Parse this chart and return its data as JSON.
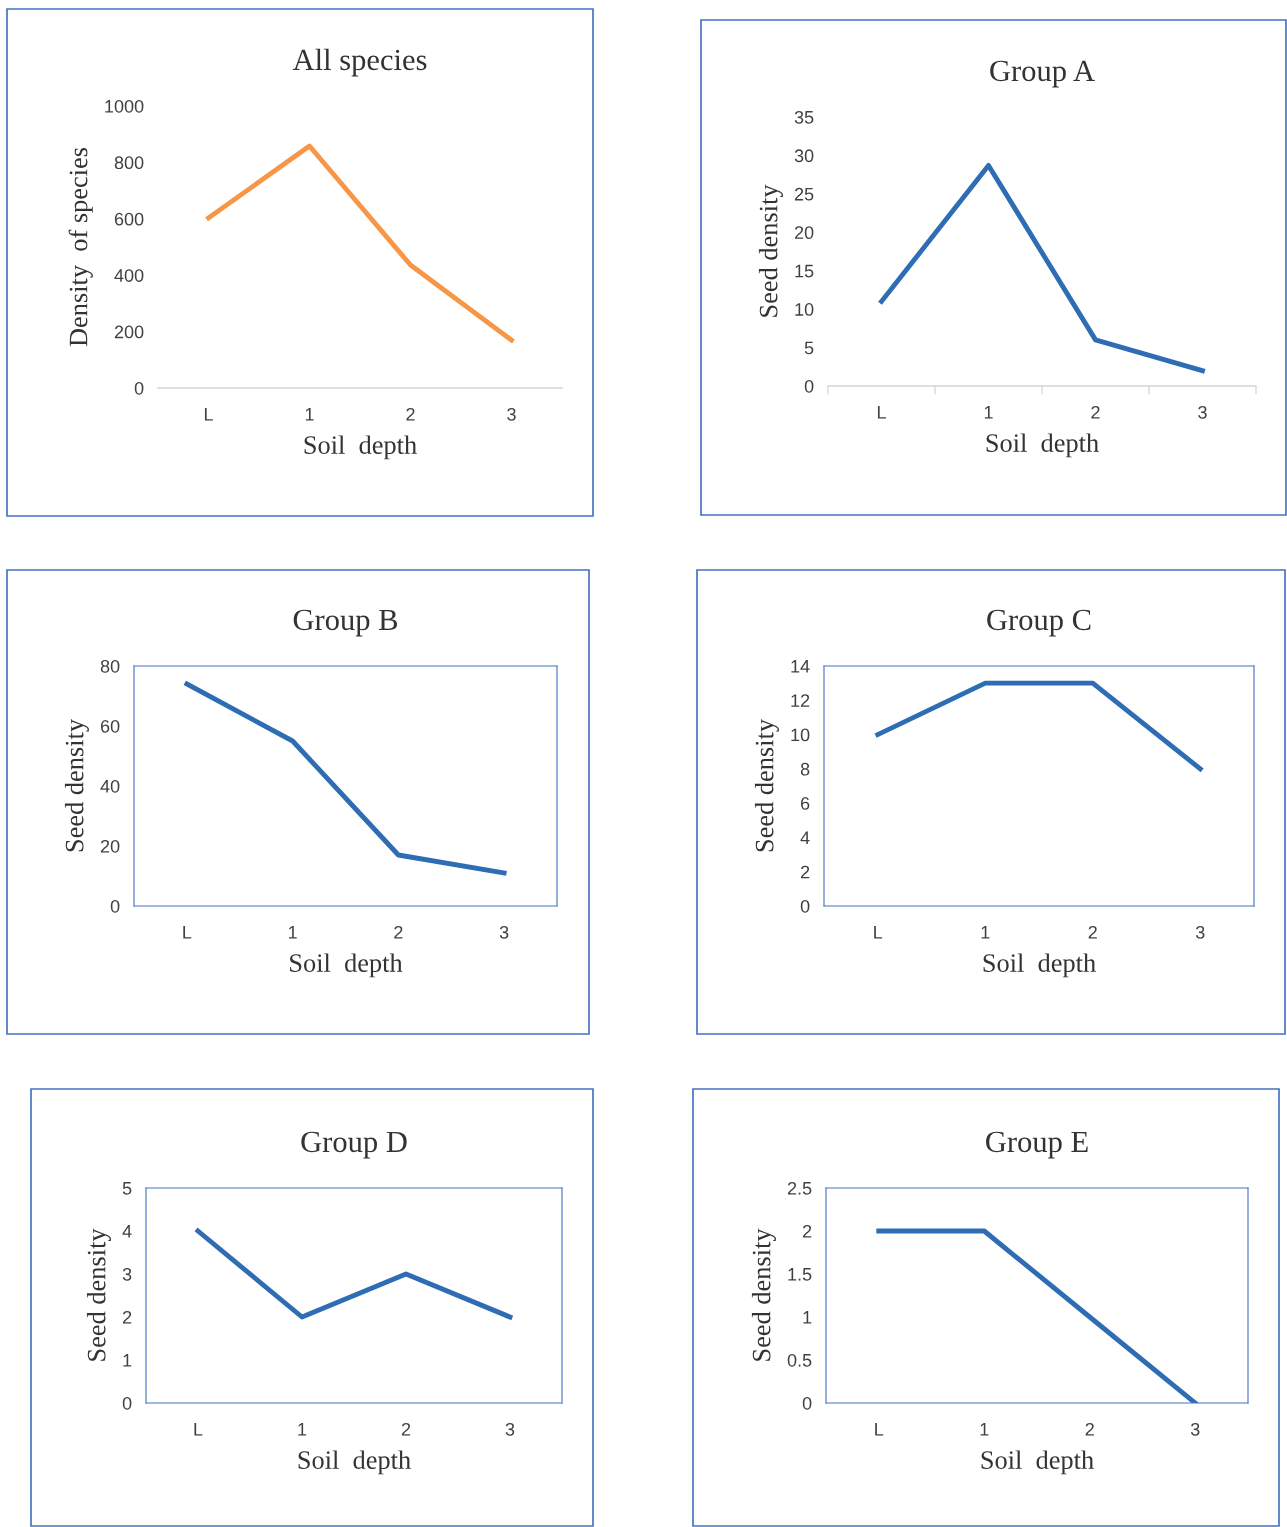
{
  "chart_data": [
    {
      "type": "line",
      "title": "All species",
      "xlabel": "Soil  depth",
      "ylabel": "Density  of species",
      "categories": [
        "L",
        "1",
        "2",
        "3"
      ],
      "series": [
        {
          "color": "#f79646",
          "values": [
            603,
            858,
            436,
            170
          ]
        }
      ],
      "ylim": [
        0,
        1000
      ],
      "yticks": [
        0,
        200,
        400,
        600,
        800,
        1000
      ],
      "grid": false,
      "legend": false,
      "marker": "none",
      "line_style": "solid"
    },
    {
      "type": "line",
      "title": "Group A",
      "xlabel": "Soil  depth",
      "ylabel": "Seed density",
      "categories": [
        "L",
        "1",
        "2",
        "3"
      ],
      "series": [
        {
          "color": "#2e6db4",
          "values": [
            11,
            28.7,
            6,
            2
          ]
        }
      ],
      "ylim": [
        0,
        35
      ],
      "yticks": [
        0,
        5,
        10,
        15,
        20,
        25,
        30,
        35
      ],
      "grid": false,
      "legend": false,
      "marker": "none",
      "line_style": "solid"
    },
    {
      "type": "line",
      "title": "Group B",
      "xlabel": "Soil  depth",
      "ylabel": "Seed density",
      "categories": [
        "L",
        "1",
        "2",
        "3"
      ],
      "series": [
        {
          "color": "#2e6db4",
          "values": [
            74,
            55,
            17,
            11
          ]
        }
      ],
      "ylim": [
        0,
        80
      ],
      "yticks": [
        0,
        20,
        40,
        60,
        80
      ],
      "grid": false,
      "legend": false,
      "marker": "none",
      "line_style": "solid"
    },
    {
      "type": "line",
      "title": "Group C",
      "xlabel": "Soil  depth",
      "ylabel": "Seed density",
      "categories": [
        "L",
        "1",
        "2",
        "3"
      ],
      "series": [
        {
          "color": "#2e6db4",
          "values": [
            10,
            13,
            13,
            8
          ]
        }
      ],
      "ylim": [
        0,
        14
      ],
      "yticks": [
        0,
        2,
        4,
        6,
        8,
        10,
        12,
        14
      ],
      "grid": false,
      "legend": false,
      "marker": "none",
      "line_style": "solid"
    },
    {
      "type": "line",
      "title": "Group D",
      "xlabel": "Soil  depth",
      "ylabel": "Seed density",
      "categories": [
        "L",
        "1",
        "2",
        "3"
      ],
      "series": [
        {
          "color": "#2e6db4",
          "values": [
            4,
            2,
            3,
            2
          ]
        }
      ],
      "ylim": [
        0,
        5
      ],
      "yticks": [
        0,
        1,
        2,
        3,
        4,
        5
      ],
      "grid": false,
      "legend": false,
      "marker": "none",
      "line_style": "solid"
    },
    {
      "type": "line",
      "title": "Group E",
      "xlabel": "Soil  depth",
      "ylabel": "Seed density",
      "categories": [
        "L",
        "1",
        "2",
        "3"
      ],
      "series": [
        {
          "color": "#2e6db4",
          "values": [
            2,
            2,
            1,
            0
          ]
        }
      ],
      "ylim": [
        0,
        2.5
      ],
      "yticks": [
        0,
        0.5,
        1,
        1.5,
        2,
        2.5
      ],
      "grid": false,
      "legend": false,
      "marker": "none",
      "line_style": "solid"
    }
  ]
}
